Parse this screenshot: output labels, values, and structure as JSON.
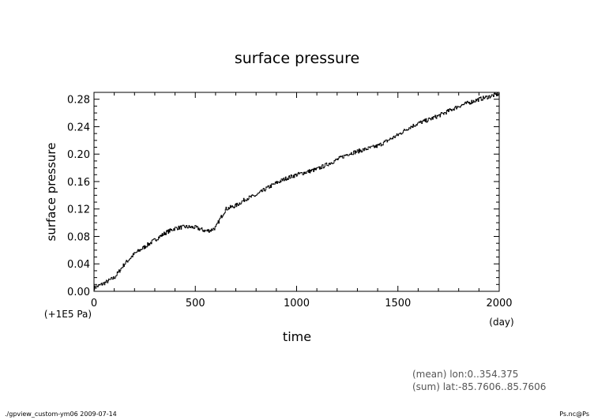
{
  "chart_data": {
    "type": "line",
    "title": "surface pressure",
    "xlabel": "time",
    "xunit": "(day)",
    "ylabel": "surface pressure",
    "yoffset_label": "(+1E5 Pa)",
    "xlim": [
      0,
      2000
    ],
    "ylim": [
      0,
      0.29
    ],
    "xticks": [
      0,
      500,
      1000,
      1500,
      2000
    ],
    "xtick_labels": [
      "0",
      "500",
      "1000",
      "1500",
      "2000"
    ],
    "yticks": [
      0,
      0.04,
      0.08,
      0.12,
      0.16,
      0.2,
      0.24,
      0.28
    ],
    "ytick_labels": [
      "0.00",
      "0.04",
      "0.08",
      "0.12",
      "0.16",
      "0.20",
      "0.24",
      "0.28"
    ],
    "grid": false,
    "series": [
      {
        "name": "surface pressure",
        "x": [
          0,
          50,
          100,
          150,
          200,
          250,
          300,
          350,
          400,
          450,
          500,
          530,
          550,
          575,
          600,
          620,
          650,
          700,
          750,
          800,
          850,
          900,
          950,
          1000,
          1050,
          1100,
          1150,
          1200,
          1250,
          1300,
          1350,
          1400,
          1450,
          1500,
          1550,
          1600,
          1650,
          1700,
          1750,
          1800,
          1850,
          1900,
          1950,
          2000
        ],
        "values": [
          0.005,
          0.012,
          0.02,
          0.04,
          0.055,
          0.065,
          0.075,
          0.085,
          0.092,
          0.094,
          0.093,
          0.09,
          0.088,
          0.089,
          0.093,
          0.105,
          0.12,
          0.125,
          0.135,
          0.14,
          0.15,
          0.158,
          0.165,
          0.17,
          0.174,
          0.178,
          0.185,
          0.192,
          0.2,
          0.204,
          0.208,
          0.212,
          0.22,
          0.228,
          0.238,
          0.245,
          0.25,
          0.256,
          0.263,
          0.27,
          0.275,
          0.28,
          0.284,
          0.288
        ]
      }
    ]
  },
  "annotations": {
    "mean": "(mean) lon:0..354.375",
    "sum": "(sum) lat:-85.7606..85.7606"
  },
  "footer": {
    "left": "./gpview_custom-ym06  2009-07-14",
    "right": "Ps.nc@Ps"
  }
}
